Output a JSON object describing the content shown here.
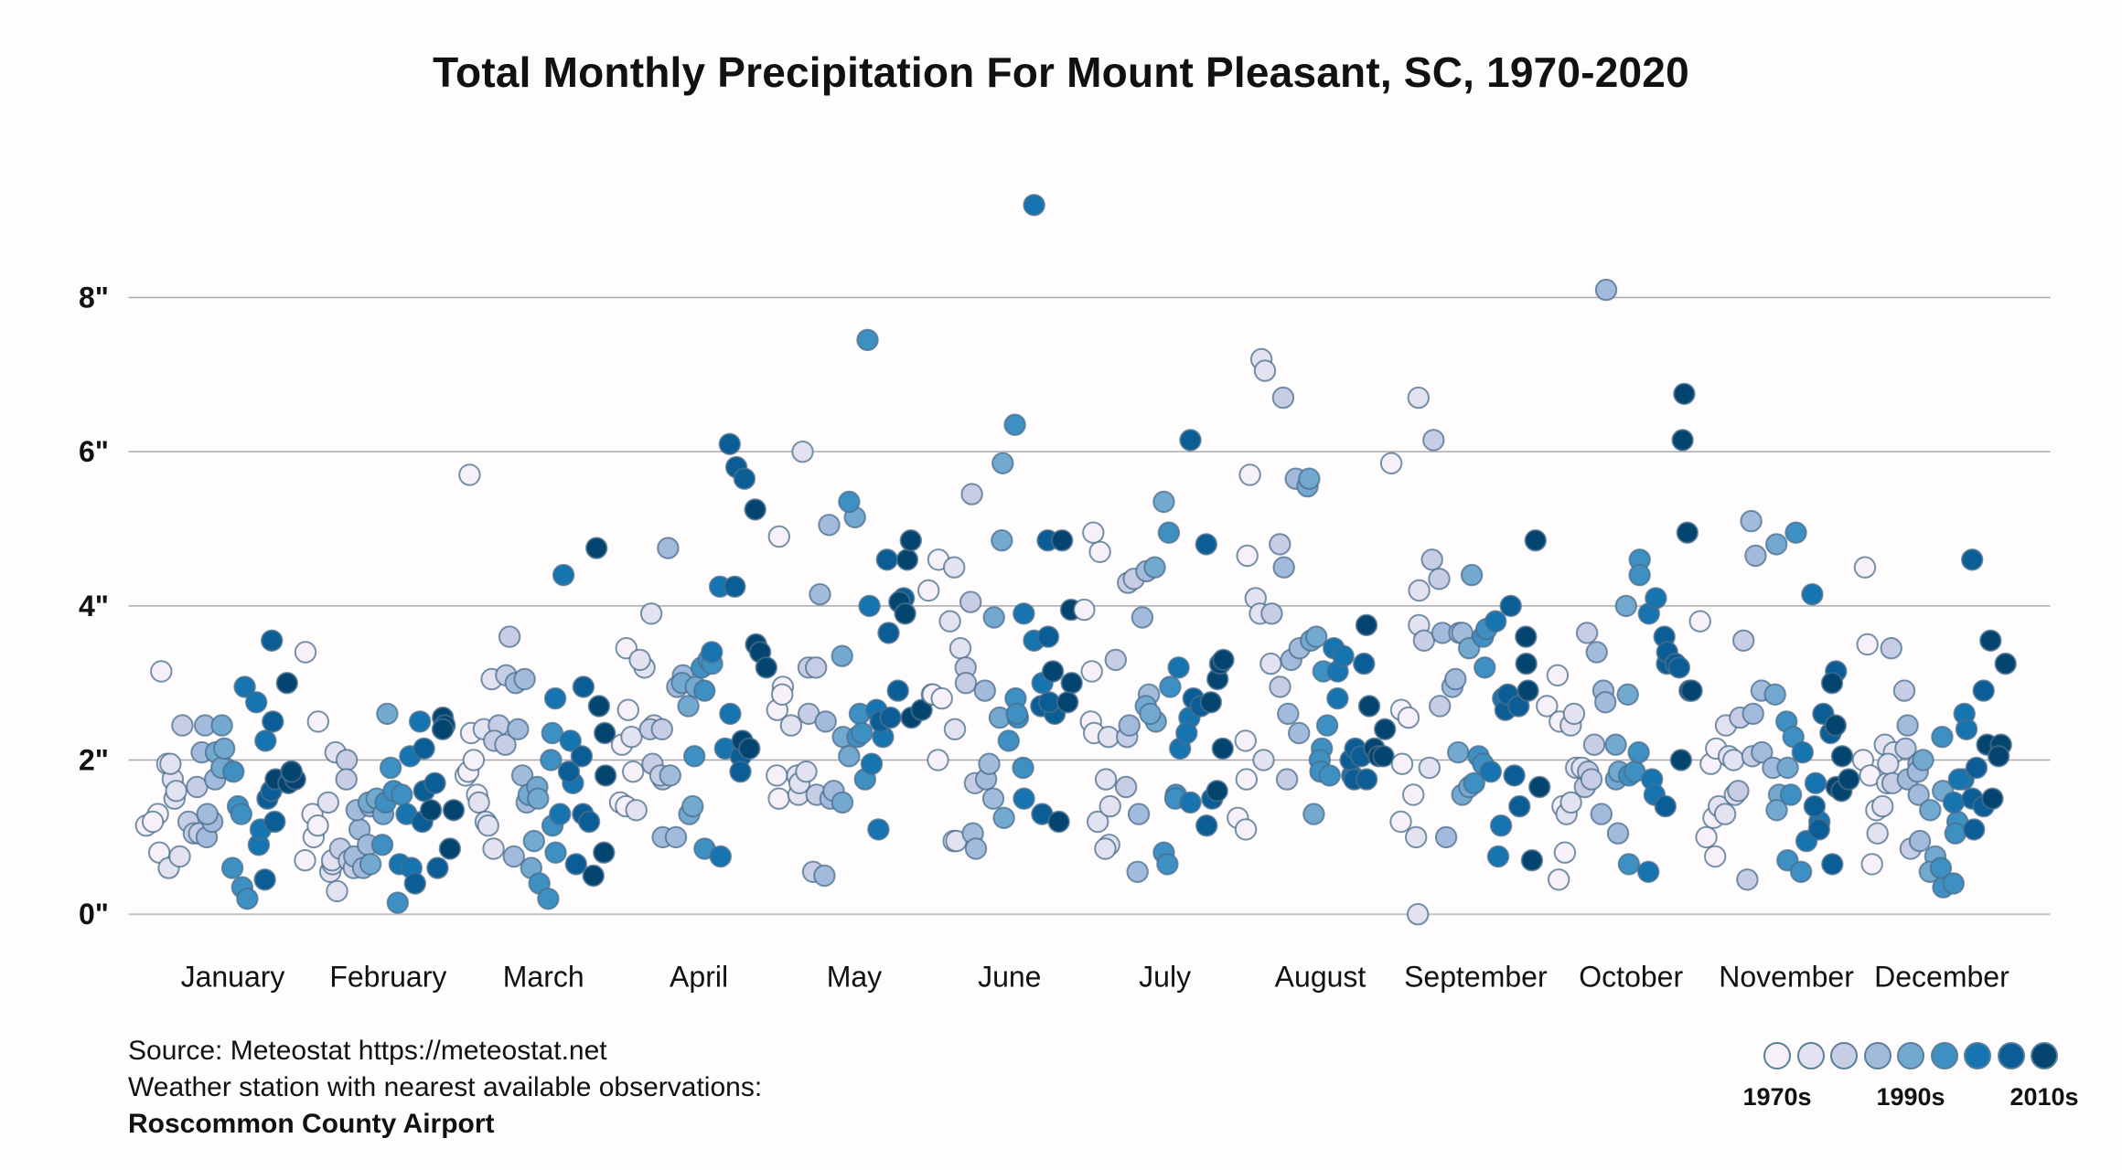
{
  "chart_data": {
    "type": "scatter",
    "title": "Total Monthly Precipitation For Mount Pleasant, SC, 1970-2020",
    "xlabel": "",
    "ylabel": "",
    "ylim": [
      0,
      9.6
    ],
    "y_ticks": [
      0,
      2,
      4,
      6,
      8
    ],
    "y_tick_labels": [
      "0\"",
      "2\"",
      "4\"",
      "6\"",
      "8\""
    ],
    "grid": true,
    "categories": [
      "January",
      "February",
      "March",
      "April",
      "May",
      "June",
      "July",
      "August",
      "September",
      "October",
      "November",
      "December"
    ],
    "years_start": 1970,
    "years_end": 2020,
    "color_by": "decade",
    "decade_colors": [
      "#f6f1f8",
      "#e3e2f0",
      "#c7cde5",
      "#a2badb",
      "#73a8cf",
      "#3f90c2",
      "#1675b1",
      "#0b5e95",
      "#044570"
    ],
    "legend": {
      "placement": "bottom-right",
      "labels": [
        "1970s",
        "1990s",
        "2010s"
      ]
    },
    "series": [
      {
        "name": "January",
        "values": [
          1.15,
          1.3,
          1.2,
          3.15,
          0.8,
          1.95,
          1.75,
          0.6,
          1.95,
          1.5,
          1.6,
          0.75,
          2.45,
          1.2,
          1.05,
          1.65,
          1.05,
          2.1,
          1.0,
          2.45,
          1.2,
          1.3,
          1.75,
          2.1,
          1.9,
          1.9,
          2.45,
          2.15,
          1.85,
          1.4,
          0.6,
          0.35,
          0.2,
          1.3,
          2.95,
          2.75,
          0.9,
          1.1,
          2.25,
          0.45,
          1.5,
          2.5,
          3.55,
          1.6,
          1.2,
          1.75,
          3.0,
          1.7,
          1.85,
          1.75,
          1.85
        ]
      },
      {
        "name": "February",
        "values": [
          0.7,
          3.4,
          1.3,
          1.0,
          1.15,
          2.5,
          1.45,
          0.55,
          0.65,
          0.7,
          2.1,
          0.3,
          0.85,
          2.0,
          1.75,
          0.7,
          0.6,
          0.75,
          1.1,
          1.35,
          0.6,
          1.4,
          0.9,
          1.45,
          0.65,
          1.5,
          1.3,
          2.6,
          0.9,
          1.45,
          1.6,
          1.9,
          0.15,
          1.55,
          0.65,
          1.3,
          0.6,
          2.05,
          2.5,
          0.4,
          1.6,
          2.15,
          1.2,
          1.7,
          0.6,
          1.35,
          2.55,
          2.45,
          0.85,
          2.4,
          1.35
        ]
      },
      {
        "name": "March",
        "values": [
          1.8,
          1.85,
          2.35,
          2.0,
          5.7,
          1.55,
          1.45,
          2.4,
          1.2,
          1.15,
          3.05,
          0.85,
          2.45,
          2.25,
          2.2,
          3.6,
          3.1,
          0.75,
          2.4,
          3.0,
          3.05,
          1.45,
          1.8,
          1.55,
          0.6,
          1.65,
          0.95,
          1.5,
          0.4,
          0.2,
          2.0,
          1.15,
          2.35,
          0.8,
          2.8,
          1.3,
          2.25,
          4.4,
          1.7,
          1.85,
          0.65,
          2.95,
          2.05,
          1.3,
          1.2,
          0.5,
          4.75,
          2.7,
          0.8,
          1.8,
          2.35
        ]
      },
      {
        "name": "April",
        "values": [
          1.45,
          2.2,
          1.4,
          3.45,
          2.65,
          1.85,
          2.3,
          1.35,
          3.2,
          3.3,
          3.9,
          2.45,
          1.95,
          2.4,
          1.75,
          1.8,
          2.4,
          1.0,
          4.75,
          1.0,
          1.8,
          3.1,
          2.95,
          2.7,
          3.0,
          1.3,
          2.95,
          1.4,
          2.05,
          0.85,
          3.2,
          2.9,
          3.3,
          3.25,
          3.4,
          0.75,
          4.25,
          2.15,
          2.6,
          4.25,
          6.1,
          2.05,
          1.85,
          5.8,
          5.65,
          2.25,
          2.15,
          5.25,
          3.5,
          3.4,
          3.2
        ]
      },
      {
        "name": "May",
        "values": [
          2.65,
          1.5,
          4.9,
          1.8,
          2.95,
          2.85,
          2.45,
          1.55,
          1.8,
          1.7,
          1.85,
          6.0,
          3.2,
          2.6,
          1.55,
          0.55,
          3.2,
          4.15,
          5.05,
          0.5,
          2.5,
          1.5,
          1.6,
          1.45,
          3.35,
          2.3,
          2.05,
          5.15,
          5.35,
          2.3,
          2.6,
          2.35,
          7.45,
          1.75,
          1.95,
          4.0,
          1.1,
          2.65,
          2.3,
          2.5,
          4.6,
          2.55,
          3.65,
          2.9,
          4.1,
          4.05,
          3.9,
          4.6,
          4.85,
          2.55,
          2.65
        ]
      },
      {
        "name": "June",
        "values": [
          4.2,
          2.85,
          2.0,
          2.85,
          2.8,
          4.6,
          3.8,
          0.95,
          2.4,
          4.5,
          0.95,
          3.45,
          3.2,
          4.05,
          3.0,
          1.7,
          5.45,
          1.05,
          0.85,
          2.9,
          1.75,
          1.5,
          1.95,
          3.85,
          4.85,
          2.55,
          5.85,
          1.25,
          2.25,
          6.35,
          2.8,
          2.55,
          2.6,
          1.9,
          1.5,
          3.9,
          3.55,
          9.2,
          3.0,
          2.7,
          3.6,
          1.3,
          4.85,
          2.6,
          2.75,
          3.15,
          1.2,
          4.85,
          3.95,
          3.0,
          2.75
        ]
      },
      {
        "name": "July",
        "values": [
          3.95,
          3.15,
          2.5,
          2.35,
          4.7,
          4.95,
          1.2,
          1.75,
          0.9,
          0.85,
          2.3,
          1.4,
          3.3,
          1.65,
          2.3,
          4.3,
          4.35,
          2.45,
          0.55,
          3.85,
          4.45,
          1.3,
          2.85,
          2.7,
          2.5,
          2.6,
          4.5,
          5.35,
          0.8,
          0.65,
          4.95,
          1.55,
          2.95,
          1.5,
          3.2,
          2.15,
          2.55,
          2.35,
          1.45,
          6.15,
          2.8,
          4.8,
          2.7,
          1.15,
          1.5,
          3.05,
          2.75,
          2.15,
          1.6,
          3.25,
          3.3
        ]
      },
      {
        "name": "August",
        "values": [
          1.25,
          1.75,
          4.65,
          2.25,
          1.1,
          5.7,
          7.2,
          4.1,
          3.9,
          7.05,
          2.0,
          3.25,
          3.9,
          2.95,
          4.8,
          6.7,
          1.75,
          4.5,
          2.6,
          3.3,
          5.65,
          2.35,
          3.45,
          5.55,
          5.65,
          3.55,
          3.6,
          1.3,
          2.15,
          2.0,
          1.85,
          3.15,
          2.45,
          1.8,
          3.45,
          2.8,
          3.15,
          3.35,
          1.8,
          2.0,
          2.15,
          1.75,
          2.05,
          3.25,
          1.75,
          3.75,
          2.7,
          2.15,
          2.05,
          2.4,
          2.05
        ]
      },
      {
        "name": "September",
        "values": [
          5.85,
          1.2,
          2.65,
          1.95,
          2.55,
          1.55,
          1.0,
          4.2,
          6.7,
          3.75,
          0.0,
          1.9,
          3.55,
          4.6,
          6.15,
          2.7,
          4.35,
          3.65,
          1.0,
          2.95,
          3.05,
          3.65,
          3.65,
          2.1,
          1.55,
          1.65,
          4.4,
          3.45,
          2.05,
          1.7,
          3.2,
          1.95,
          3.6,
          3.7,
          1.85,
          0.75,
          1.15,
          3.8,
          2.8,
          4.0,
          2.65,
          2.85,
          2.7,
          1.8,
          1.4,
          3.25,
          3.6,
          2.9,
          0.7,
          4.85,
          1.65
        ]
      },
      {
        "name": "October",
        "values": [
          2.7,
          3.1,
          0.45,
          2.5,
          0.8,
          1.4,
          1.3,
          2.45,
          1.45,
          1.9,
          2.6,
          1.9,
          3.65,
          1.65,
          1.85,
          2.2,
          1.75,
          3.4,
          1.3,
          2.9,
          2.75,
          8.1,
          1.05,
          1.75,
          2.2,
          1.85,
          2.85,
          4.0,
          1.8,
          0.65,
          1.85,
          4.6,
          2.1,
          4.4,
          0.55,
          3.9,
          1.75,
          1.55,
          4.1,
          3.6,
          3.25,
          1.4,
          3.4,
          3.25,
          3.2,
          2.0,
          6.75,
          6.15,
          2.9,
          4.95,
          2.9
        ]
      },
      {
        "name": "November",
        "values": [
          3.8,
          1.95,
          1.0,
          1.25,
          0.75,
          2.15,
          1.4,
          2.05,
          1.3,
          2.45,
          1.55,
          2.0,
          2.55,
          1.6,
          3.55,
          2.05,
          0.45,
          5.1,
          2.6,
          4.65,
          2.9,
          2.1,
          1.9,
          4.8,
          2.85,
          1.55,
          1.35,
          1.9,
          0.7,
          2.5,
          1.55,
          2.3,
          0.55,
          4.95,
          0.95,
          2.1,
          4.15,
          1.7,
          1.2,
          1.1,
          1.4,
          2.6,
          2.35,
          0.65,
          3.15,
          2.45,
          3.0,
          1.65,
          1.6,
          2.05,
          1.75
        ]
      },
      {
        "name": "December",
        "values": [
          2.0,
          4.5,
          1.8,
          3.5,
          1.35,
          0.65,
          1.4,
          1.05,
          2.2,
          1.7,
          2.1,
          1.95,
          3.45,
          1.7,
          2.9,
          2.15,
          0.85,
          2.45,
          1.75,
          1.95,
          0.95,
          1.85,
          1.55,
          2.0,
          1.35,
          0.75,
          0.55,
          1.6,
          0.35,
          0.6,
          2.3,
          0.4,
          1.2,
          1.05,
          1.45,
          1.75,
          1.75,
          2.6,
          2.4,
          1.5,
          4.6,
          1.1,
          1.9,
          2.9,
          1.4,
          2.2,
          3.55,
          1.5,
          2.2,
          3.25,
          2.05
        ]
      }
    ]
  },
  "source": {
    "line1": "Source: Meteostat https://meteostat.net",
    "line2": "Weather station with nearest available observations:",
    "station": "Roscommon County Airport"
  }
}
